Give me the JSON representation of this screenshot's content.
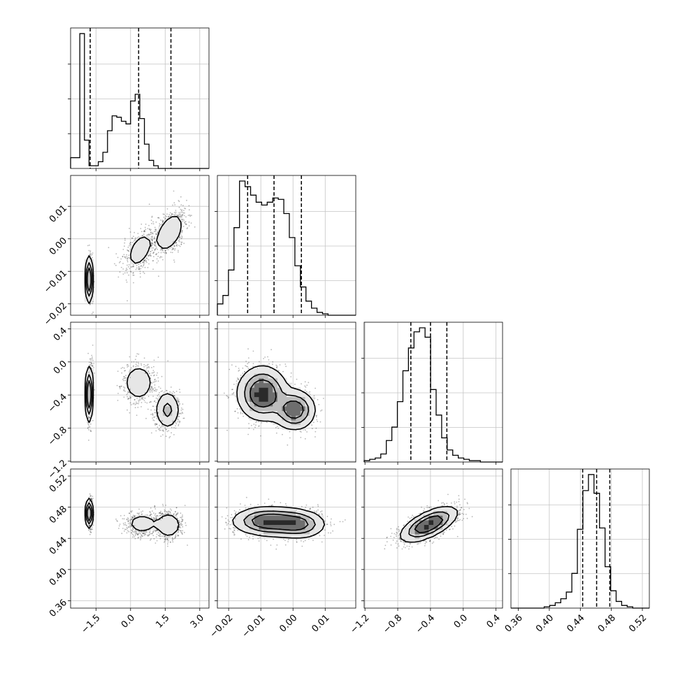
{
  "chart_data": {
    "type": "corner",
    "parameters": [
      {
        "ticks": [
          "−1.5",
          "0.0",
          "1.5",
          "3.0"
        ],
        "tick_values": [
          -1.5,
          0.0,
          1.5,
          3.0
        ],
        "range": [
          -2.6,
          3.4
        ],
        "quantiles": [
          -1.75,
          0.35,
          1.75
        ],
        "hist": {
          "edges_start": -2.6,
          "bin_width": 0.2,
          "counts": [
            0.08,
            0.08,
            1.0,
            0.21,
            0.02,
            0.02,
            0.05,
            0.12,
            0.28,
            0.39,
            0.38,
            0.35,
            0.33,
            0.5,
            0.55,
            0.37,
            0.18,
            0.06,
            0.02,
            0.0
          ]
        }
      },
      {
        "ticks": [
          "−0.02",
          "−0.01",
          "0.00",
          "0.01"
        ],
        "tick_values": [
          -0.02,
          -0.01,
          0.0,
          0.01
        ],
        "range": [
          -0.0235,
          0.0195
        ],
        "quantiles": [
          -0.0141,
          -0.0059,
          0.0026
        ],
        "hist": {
          "edges_start": -0.0235,
          "bin_width": 0.00172,
          "counts": [
            0.08,
            0.14,
            0.32,
            0.62,
            0.95,
            0.91,
            0.85,
            0.8,
            0.78,
            0.8,
            0.83,
            0.82,
            0.72,
            0.55,
            0.35,
            0.2,
            0.1,
            0.05,
            0.02,
            0.01,
            0.0,
            0.0,
            0.0,
            0.0,
            0.0
          ]
        }
      },
      {
        "ticks": [
          "−1.2",
          "−0.8",
          "−0.4",
          "0.0",
          "0.4"
        ],
        "tick_values": [
          -1.2,
          -0.8,
          -0.4,
          0.0,
          0.4
        ],
        "range": [
          -1.21,
          0.48
        ],
        "quantiles": [
          -0.64,
          -0.4,
          -0.2
        ],
        "hist": {
          "edges_start": -1.21,
          "bin_width": 0.0676,
          "counts": [
            0.01,
            0.02,
            0.03,
            0.06,
            0.16,
            0.26,
            0.45,
            0.68,
            0.85,
            0.97,
            1.0,
            0.93,
            0.54,
            0.35,
            0.18,
            0.09,
            0.05,
            0.03,
            0.02,
            0.01,
            0.01,
            0.0,
            0.0,
            0.0,
            0.0
          ]
        }
      },
      {
        "ticks": [
          "0.36",
          "0.40",
          "0.44",
          "0.48",
          "0.52"
        ],
        "tick_values": [
          0.36,
          0.4,
          0.44,
          0.48,
          0.52
        ],
        "range": [
          0.3505,
          0.529
        ],
        "quantiles": [
          0.443,
          0.461,
          0.478
        ],
        "hist": {
          "edges_start": 0.3505,
          "bin_width": 0.00714,
          "counts": [
            0.0,
            0.0,
            0.0,
            0.0,
            0.0,
            0.0,
            0.01,
            0.02,
            0.04,
            0.07,
            0.12,
            0.26,
            0.59,
            0.88,
            1.0,
            0.86,
            0.6,
            0.31,
            0.13,
            0.05,
            0.02,
            0.01,
            0.0,
            0.0,
            0.0
          ]
        }
      }
    ],
    "blobs": {
      "1-0": [
        {
          "mx": -1.75,
          "my": -0.0125,
          "sx": 0.06,
          "sy": 0.0035,
          "r": 0,
          "w": 0.33
        },
        {
          "mx": 0.4,
          "my": -0.0035,
          "sx": 0.35,
          "sy": 0.0035,
          "r": 0.45,
          "w": 0.28
        },
        {
          "mx": 1.7,
          "my": 0.002,
          "sx": 0.35,
          "sy": 0.0035,
          "r": 0.45,
          "w": 0.39
        }
      ],
      "2-0": [
        {
          "mx": -1.75,
          "my": -0.35,
          "sx": 0.06,
          "sy": 0.17,
          "r": 0.3,
          "w": 0.33
        },
        {
          "mx": 0.35,
          "my": -0.25,
          "sx": 0.35,
          "sy": 0.12,
          "r": 0,
          "w": 0.32
        },
        {
          "mx": 1.6,
          "my": -0.58,
          "sx": 0.28,
          "sy": 0.12,
          "r": 0,
          "w": 0.35
        }
      ],
      "3-0": [
        {
          "mx": -1.75,
          "my": 0.472,
          "sx": 0.06,
          "sy": 0.009,
          "r": 0,
          "w": 0.33
        },
        {
          "mx": 0.5,
          "my": 0.459,
          "sx": 0.4,
          "sy": 0.008,
          "r": 0,
          "w": 0.3
        },
        {
          "mx": 1.65,
          "my": 0.457,
          "sx": 0.3,
          "sy": 0.009,
          "r": 0,
          "w": 0.37
        }
      ],
      "2-1": [
        {
          "mx": -0.0095,
          "my": -0.38,
          "sx": 0.0038,
          "sy": 0.16,
          "r": 0,
          "w": 0.65
        },
        {
          "mx": 0.0005,
          "my": -0.58,
          "sx": 0.0032,
          "sy": 0.12,
          "r": 0,
          "w": 0.35
        }
      ],
      "3-1": [
        {
          "mx": -0.0075,
          "my": 0.462,
          "sx": 0.0055,
          "sy": 0.009,
          "r": 0,
          "w": 0.65
        },
        {
          "mx": 0.0018,
          "my": 0.458,
          "sx": 0.0042,
          "sy": 0.009,
          "r": 0,
          "w": 0.35
        }
      ],
      "3-2": [
        {
          "mx": -0.42,
          "my": 0.458,
          "sx": 0.17,
          "sy": 0.011,
          "r": 0.65,
          "w": 1.0
        }
      ]
    }
  }
}
